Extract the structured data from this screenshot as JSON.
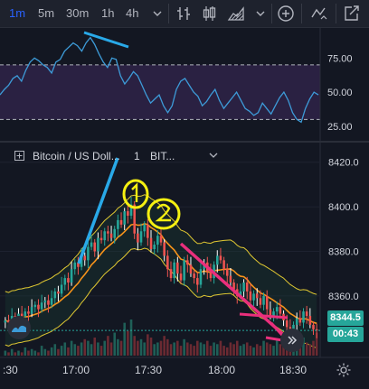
{
  "toolbar": {
    "timeframes": [
      "1m",
      "5m",
      "30m",
      "1h",
      "4h"
    ],
    "active_timeframe": "1m"
  },
  "rsi": {
    "levels": [
      "75.00",
      "50.00",
      "25.00"
    ],
    "upper_band": 70,
    "lower_band": 30,
    "ylim": [
      17,
      95
    ],
    "values": [
      48,
      52,
      55,
      60,
      62,
      58,
      66,
      72,
      75,
      73,
      70,
      68,
      64,
      72,
      74,
      80,
      83,
      86,
      84,
      80,
      86,
      90,
      85,
      78,
      72,
      68,
      75,
      74,
      62,
      56,
      60,
      65,
      62,
      55,
      48,
      42,
      45,
      48,
      40,
      35,
      40,
      52,
      58,
      60,
      55,
      50,
      47,
      40,
      43,
      48,
      52,
      44,
      38,
      42,
      46,
      50,
      44,
      38,
      36,
      33,
      35,
      42,
      38,
      34,
      40,
      46,
      50,
      44,
      35,
      30,
      28,
      38,
      45,
      50,
      48
    ]
  },
  "main_chart": {
    "symbol_label": "Bitcoin / US Doll...",
    "interval_label": "1",
    "exchange_label": "BIT...",
    "price_levels": [
      "8420.0",
      "8400.0",
      "8380.0",
      "8360.0"
    ],
    "time_labels": [
      ":30",
      "17:00",
      "17:30",
      "18:00",
      "18:30"
    ],
    "last_price": "8344.5",
    "countdown": "00:43",
    "accent": "#2962ff"
  },
  "chart_data": {
    "type": "candlestick",
    "ylim": [
      8334,
      8428
    ],
    "x_labels": [
      ":30",
      "17:00",
      "17:30",
      "18:00",
      "18:30"
    ],
    "close": [
      8349,
      8348,
      8351,
      8350,
      8352,
      8351,
      8353,
      8352,
      8355,
      8356,
      8354,
      8357,
      8358,
      8356,
      8359,
      8362,
      8361,
      8365,
      8368,
      8366,
      8372,
      8375,
      8373,
      8378,
      8376,
      8382,
      8384,
      8380,
      8386,
      8385,
      8389,
      8388,
      8386,
      8390,
      8394,
      8392,
      8398,
      8396,
      8401,
      8388,
      8384,
      8389,
      8392,
      8386,
      8381,
      8383,
      8387,
      8384,
      8378,
      8372,
      8368,
      8375,
      8370,
      8367,
      8376,
      8374,
      8370,
      8368,
      8365,
      8372,
      8375,
      8371,
      8368,
      8374,
      8378,
      8376,
      8372,
      8369,
      8366,
      8363,
      8360,
      8362,
      8366,
      8362,
      8358,
      8361,
      8359,
      8356,
      8360,
      8354,
      8351,
      8353,
      8355,
      8352,
      8349,
      8346,
      8345,
      8347,
      8350,
      8348,
      8353,
      8351,
      8347,
      8345,
      8344.5
    ],
    "bb_upper_offset": 13,
    "bb_lower_offset": 11,
    "volume": [
      3,
      2,
      4,
      2,
      3,
      2,
      5,
      3,
      4,
      3,
      2,
      6,
      4,
      3,
      5,
      7,
      4,
      6,
      8,
      5,
      9,
      7,
      6,
      8,
      10,
      9,
      7,
      11,
      8,
      6,
      9,
      12,
      8,
      14,
      10,
      9,
      20,
      15,
      22,
      12,
      9,
      10,
      8,
      13,
      11,
      7,
      8,
      9,
      12,
      10,
      7,
      8,
      9,
      6,
      10,
      8,
      7,
      6,
      9,
      8,
      7,
      9,
      6,
      8,
      7,
      9,
      6,
      5,
      8,
      7,
      9,
      6,
      7,
      8,
      6,
      5,
      7,
      6,
      9,
      8,
      7,
      6,
      10,
      7,
      8,
      9,
      6,
      7,
      8,
      6,
      11,
      8,
      7,
      9,
      14
    ]
  }
}
